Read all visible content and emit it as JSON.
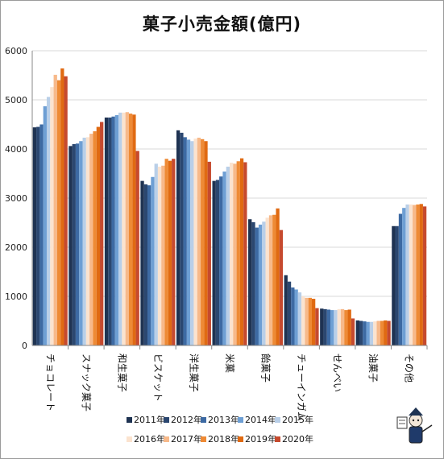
{
  "chart_data": {
    "type": "bar",
    "title": "菓子小売金額(億円)",
    "xlabel": "",
    "ylabel": "",
    "ylim": [
      0,
      6000
    ],
    "yticks": [
      0,
      1000,
      2000,
      3000,
      4000,
      5000,
      6000
    ],
    "grid": true,
    "legend_position": "bottom",
    "categories": [
      "チョコレート",
      "スナック菓子",
      "和生菓子",
      "ビスケット",
      "洋生菓子",
      "米菓",
      "飴菓子",
      "チューインガム",
      "せんべい",
      "油菓子",
      "その他"
    ],
    "series": [
      {
        "name": "2011年",
        "color": "#1f3352",
        "values": [
          4440,
          4060,
          4640,
          3350,
          4380,
          3350,
          2570,
          1430,
          750,
          510,
          2430
        ]
      },
      {
        "name": "2012年",
        "color": "#2b4770",
        "values": [
          4450,
          4100,
          4640,
          3280,
          4330,
          3370,
          2510,
          1300,
          740,
          500,
          2430
        ]
      },
      {
        "name": "2013年",
        "color": "#3d6aa3",
        "values": [
          4500,
          4110,
          4660,
          3260,
          4240,
          3440,
          2400,
          1180,
          730,
          490,
          2680
        ]
      },
      {
        "name": "2014年",
        "color": "#6e9fd4",
        "values": [
          4870,
          4160,
          4690,
          3430,
          4190,
          3540,
          2460,
          1140,
          720,
          480,
          2800
        ]
      },
      {
        "name": "2015年",
        "color": "#b9cfe8",
        "values": [
          5060,
          4230,
          4740,
          3700,
          4160,
          3640,
          2520,
          1080,
          720,
          480,
          2870
        ]
      },
      {
        "name": "2016年",
        "color": "#fbe3cf",
        "values": [
          5260,
          4240,
          4740,
          3640,
          4210,
          3720,
          2600,
          1000,
          740,
          490,
          2870
        ]
      },
      {
        "name": "2017年",
        "color": "#f7b98a",
        "values": [
          5510,
          4310,
          4750,
          3660,
          4230,
          3700,
          2650,
          970,
          740,
          500,
          2860
        ]
      },
      {
        "name": "2018年",
        "color": "#ee8a35",
        "values": [
          5400,
          4360,
          4720,
          3800,
          4200,
          3750,
          2660,
          970,
          720,
          500,
          2870
        ]
      },
      {
        "name": "2019年",
        "color": "#e06a12",
        "values": [
          5640,
          4450,
          4700,
          3760,
          4160,
          3810,
          2790,
          950,
          730,
          510,
          2880
        ]
      },
      {
        "name": "2020年",
        "color": "#c64a2e",
        "values": [
          5480,
          4550,
          3960,
          3800,
          3740,
          3730,
          2350,
          760,
          550,
          500,
          2830
        ]
      }
    ]
  }
}
